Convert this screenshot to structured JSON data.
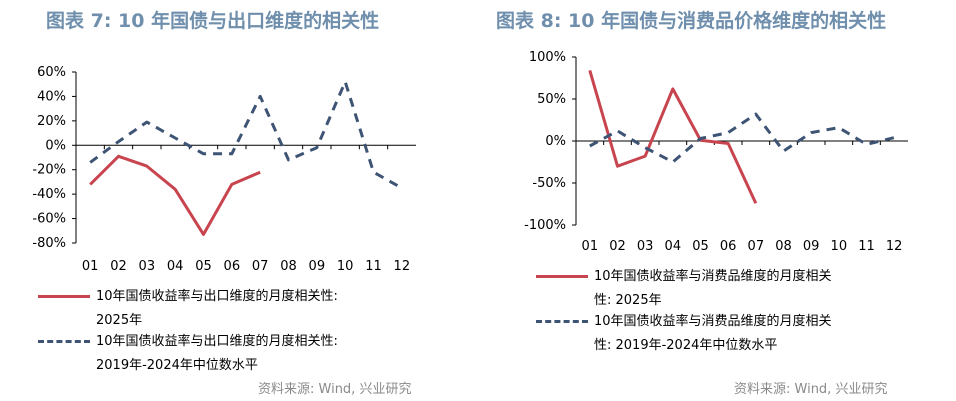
{
  "left_panel": {
    "title": "图表 7:  10 年国债与出口维度的相关性",
    "legend_solid": [
      "10年国债收益率与出口维度的月度相关性:",
      "2025年"
    ],
    "legend_dashed": [
      "10年国债收益率与出口维度的月度相关性:",
      "2019年-2024年中位数水平"
    ],
    "source": "资料来源: Wind, 兴业研究"
  },
  "right_panel": {
    "title": "图表 8:  10 年国债与消费品价格维度的相关性",
    "legend_solid": [
      "10年国债收益率与消费品维度的月度相关",
      "性: 2025年"
    ],
    "legend_dashed": [
      "10年国债收益率与消费品维度的月度相关",
      "性: 2019年-2024年中位数水平"
    ],
    "source": "资料来源: Wind, 兴业研究"
  },
  "colors": {
    "series_2025": "#c8444f",
    "series_median": "#3e5474",
    "title": "#6f8fad"
  },
  "chart_data": [
    {
      "type": "line",
      "title": "图表 7:  10 年国债与出口维度的相关性",
      "categories": [
        "01",
        "02",
        "03",
        "04",
        "05",
        "06",
        "07",
        "08",
        "09",
        "10",
        "11",
        "12"
      ],
      "ylim": [
        -80,
        60
      ],
      "yticks": [
        -80,
        -60,
        -40,
        -20,
        0,
        20,
        40,
        60
      ],
      "ytick_labels": [
        "-80%",
        "-60%",
        "-40%",
        "-20%",
        "0%",
        "20%",
        "40%",
        "60%"
      ],
      "series": [
        {
          "name": "10年国债收益率与出口维度的月度相关性: 2025年",
          "style": "solid",
          "values": [
            -32,
            -9,
            -17,
            -36,
            -73,
            -32,
            -22,
            null,
            null,
            null,
            null,
            null
          ]
        },
        {
          "name": "10年国债收益率与出口维度的月度相关性: 2019年-2024年中位数水平",
          "style": "dashed",
          "values": [
            -14,
            3,
            19,
            6,
            -7,
            -7,
            40,
            -12,
            -2,
            52,
            -22,
            -35
          ]
        }
      ]
    },
    {
      "type": "line",
      "title": "图表 8:  10 年国债与消费品价格维度的相关性",
      "categories": [
        "01",
        "02",
        "03",
        "04",
        "05",
        "06",
        "07",
        "08",
        "09",
        "10",
        "11",
        "12"
      ],
      "ylim": [
        -100,
        100
      ],
      "yticks": [
        -100,
        -50,
        0,
        50,
        100
      ],
      "ytick_labels": [
        "-100%",
        "-50%",
        "0%",
        "50%",
        "100%"
      ],
      "series": [
        {
          "name": "10年国债收益率与消费品维度的月度相关性: 2025年",
          "style": "solid",
          "values": [
            84,
            -30,
            -18,
            62,
            1,
            -3,
            -74,
            null,
            null,
            null,
            null,
            null
          ]
        },
        {
          "name": "10年国债收益率与消费品维度的月度相关性: 2019年-2024年中位数水平",
          "style": "dashed",
          "values": [
            -6,
            12,
            -8,
            -25,
            3,
            10,
            32,
            -12,
            10,
            16,
            -4,
            4
          ]
        }
      ]
    }
  ]
}
